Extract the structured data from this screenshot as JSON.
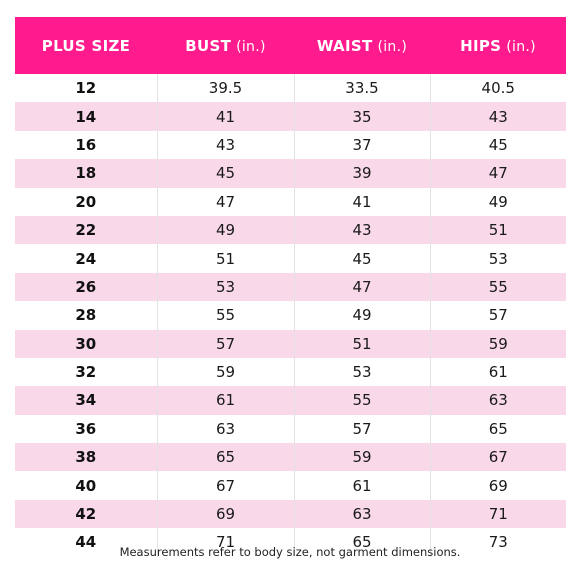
{
  "table": {
    "headers": [
      {
        "label": "PLUS SIZE",
        "unit": ""
      },
      {
        "label": "BUST",
        "unit": "(in.)"
      },
      {
        "label": "WAIST",
        "unit": "(in.)"
      },
      {
        "label": "HIPS",
        "unit": "(in.)"
      }
    ],
    "rows": [
      [
        "12",
        "39.5",
        "33.5",
        "40.5"
      ],
      [
        "14",
        "41",
        "35",
        "43"
      ],
      [
        "16",
        "43",
        "37",
        "45"
      ],
      [
        "18",
        "45",
        "39",
        "47"
      ],
      [
        "20",
        "47",
        "41",
        "49"
      ],
      [
        "22",
        "49",
        "43",
        "51"
      ],
      [
        "24",
        "51",
        "45",
        "53"
      ],
      [
        "26",
        "53",
        "47",
        "55"
      ],
      [
        "28",
        "55",
        "49",
        "57"
      ],
      [
        "30",
        "57",
        "51",
        "59"
      ],
      [
        "32",
        "59",
        "53",
        "61"
      ],
      [
        "34",
        "61",
        "55",
        "63"
      ],
      [
        "36",
        "63",
        "57",
        "65"
      ],
      [
        "38",
        "65",
        "59",
        "67"
      ],
      [
        "40",
        "67",
        "61",
        "69"
      ],
      [
        "42",
        "69",
        "63",
        "71"
      ],
      [
        "44",
        "71",
        "65",
        "73"
      ]
    ]
  },
  "footnote": "Measurements refer to body size, not garment dimensions.",
  "colors": {
    "header_bg": "#ff1b8d",
    "stripe_bg": "#f9d8ea"
  }
}
